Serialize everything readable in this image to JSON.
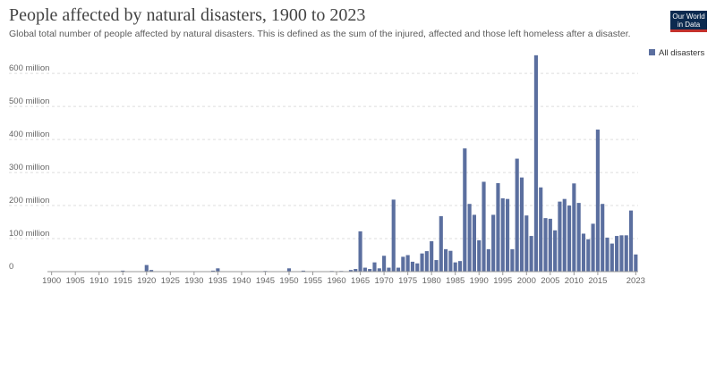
{
  "header": {
    "title": "People affected by natural disasters, 1900 to 2023",
    "subtitle": "Global total number of people affected by natural disasters. This is defined as the sum of the injured, affected and those left homeless after a disaster.",
    "logo_line1": "Our World",
    "logo_line2": "in Data"
  },
  "colors": {
    "bar": "#5b6f9f",
    "grid": "#dddddd",
    "axis": "#999999",
    "logo_bg": "#0c2a4f",
    "logo_accent": "#c4312c"
  },
  "chart_data": {
    "type": "bar",
    "title": "People affected by natural disasters, 1900 to 2023",
    "xlabel": "",
    "ylabel": "",
    "ylim": [
      0,
      660
    ],
    "y_unit": "million",
    "y_ticks": [
      0,
      100,
      200,
      300,
      400,
      500,
      600
    ],
    "y_tick_labels": [
      "0",
      "100 million",
      "200 million",
      "300 million",
      "400 million",
      "500 million",
      "600 million"
    ],
    "x_ticks": [
      1900,
      1905,
      1910,
      1915,
      1920,
      1925,
      1930,
      1935,
      1940,
      1945,
      1950,
      1955,
      1960,
      1965,
      1970,
      1975,
      1980,
      1985,
      1990,
      1995,
      2000,
      2005,
      2010,
      2015,
      2023
    ],
    "legend": [
      "All disasters"
    ],
    "legend_position": "top-right",
    "series": [
      {
        "name": "All disasters",
        "x": [
          1900,
          1901,
          1902,
          1903,
          1904,
          1905,
          1906,
          1907,
          1908,
          1909,
          1910,
          1911,
          1912,
          1913,
          1914,
          1915,
          1916,
          1917,
          1918,
          1919,
          1920,
          1921,
          1922,
          1923,
          1924,
          1925,
          1926,
          1927,
          1928,
          1929,
          1930,
          1931,
          1932,
          1933,
          1934,
          1935,
          1936,
          1937,
          1938,
          1939,
          1940,
          1941,
          1942,
          1943,
          1944,
          1945,
          1946,
          1947,
          1948,
          1949,
          1950,
          1951,
          1952,
          1953,
          1954,
          1955,
          1956,
          1957,
          1958,
          1959,
          1960,
          1961,
          1962,
          1963,
          1964,
          1965,
          1966,
          1967,
          1968,
          1969,
          1970,
          1971,
          1972,
          1973,
          1974,
          1975,
          1976,
          1977,
          1978,
          1979,
          1980,
          1981,
          1982,
          1983,
          1984,
          1985,
          1986,
          1987,
          1988,
          1989,
          1990,
          1991,
          1992,
          1993,
          1994,
          1995,
          1996,
          1997,
          1998,
          1999,
          2000,
          2001,
          2002,
          2003,
          2004,
          2005,
          2006,
          2007,
          2008,
          2009,
          2010,
          2011,
          2012,
          2013,
          2014,
          2015,
          2016,
          2017,
          2018,
          2019,
          2020,
          2021,
          2022,
          2023
        ],
        "values": [
          0,
          0,
          0,
          0,
          0,
          0,
          0,
          0,
          0,
          0,
          0,
          0,
          0,
          0,
          0,
          3,
          0,
          0,
          0,
          0,
          20,
          5,
          0,
          0,
          0,
          0,
          0,
          0,
          0,
          0,
          0,
          0,
          0,
          0,
          3,
          10,
          0,
          0,
          0,
          0,
          0,
          0,
          0,
          0,
          0,
          2,
          0,
          0,
          0,
          0,
          10,
          0,
          0,
          3,
          0,
          0,
          0,
          0,
          0,
          2,
          0,
          2,
          0,
          5,
          8,
          122,
          12,
          8,
          28,
          10,
          48,
          12,
          218,
          12,
          45,
          50,
          30,
          25,
          55,
          62,
          92,
          35,
          168,
          68,
          63,
          28,
          32,
          373,
          205,
          172,
          95,
          272,
          68,
          172,
          268,
          222,
          220,
          68,
          342,
          285,
          170,
          108,
          655,
          255,
          162,
          160,
          125,
          212,
          220,
          200,
          267,
          208,
          115,
          98,
          145,
          430,
          205,
          103,
          85,
          108,
          110,
          110,
          185,
          52
        ]
      }
    ]
  }
}
